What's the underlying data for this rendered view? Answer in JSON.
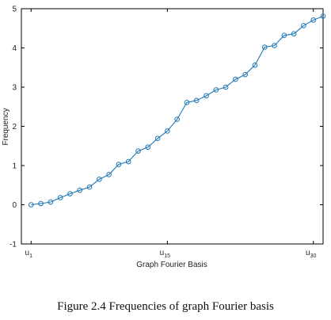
{
  "chart_data": {
    "type": "line",
    "title": "",
    "xlabel": "Graph Fourier Basis",
    "ylabel": "Frequency",
    "xlim": [
      0,
      31
    ],
    "ylim": [
      -1,
      5
    ],
    "yticks": [
      -1,
      0,
      1,
      2,
      3,
      4,
      5
    ],
    "xticks": [
      {
        "x": 1,
        "base": "u",
        "sub": "1"
      },
      {
        "x": 15,
        "base": "u",
        "sub": "15"
      },
      {
        "x": 30,
        "base": "u",
        "sub": "30"
      }
    ],
    "grid": false,
    "series": [
      {
        "marker": "circle",
        "color": "#1f77b4",
        "x": [
          1,
          2,
          3,
          4,
          5,
          6,
          7,
          8,
          9,
          10,
          11,
          12,
          13,
          14,
          15,
          16,
          17,
          18,
          19,
          20,
          21,
          22,
          23,
          24,
          25,
          26,
          27,
          28,
          29,
          30,
          31
        ],
        "values": [
          0.0,
          0.03,
          0.07,
          0.18,
          0.28,
          0.37,
          0.45,
          0.65,
          0.77,
          1.03,
          1.1,
          1.37,
          1.47,
          1.69,
          1.88,
          2.18,
          2.61,
          2.66,
          2.78,
          2.93,
          3.0,
          3.2,
          3.32,
          3.56,
          4.02,
          4.06,
          4.32,
          4.36,
          4.57,
          4.71,
          4.81
        ]
      }
    ]
  },
  "caption": {
    "text": "Figure 2.4  Frequencies of graph Fourier basis"
  }
}
